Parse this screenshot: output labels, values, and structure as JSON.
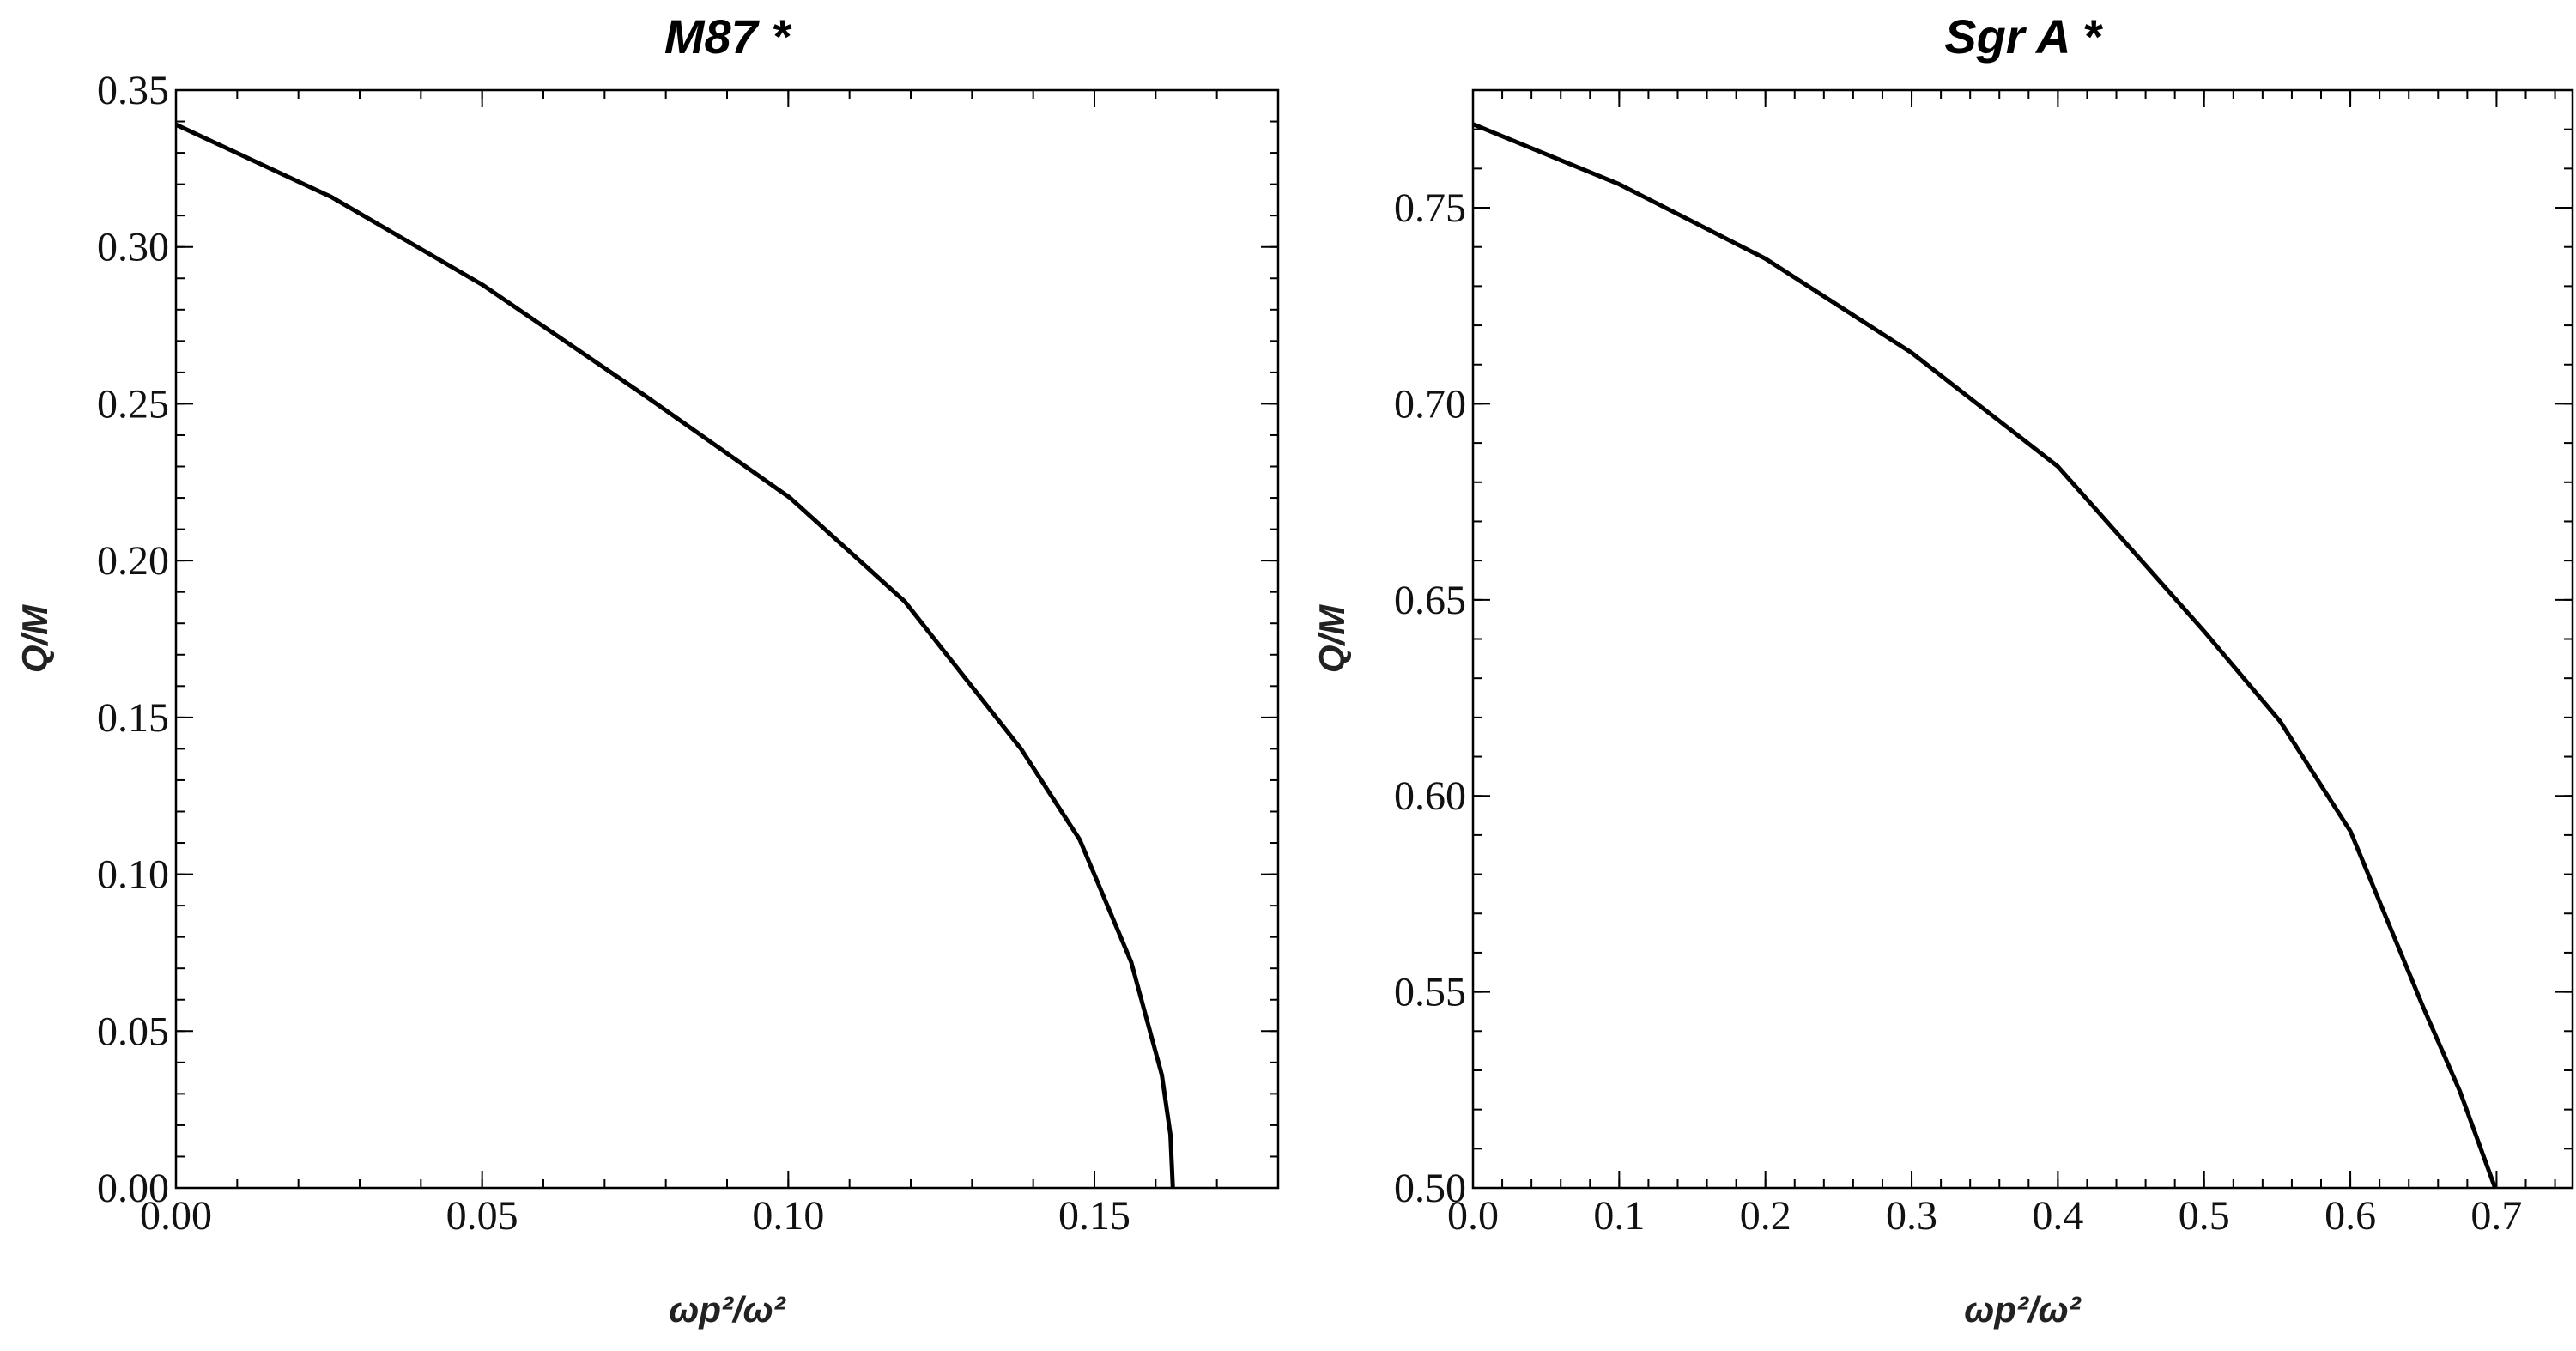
{
  "chart_data": [
    {
      "type": "line",
      "title": "M87 *",
      "xlabel": "ωp²/ω²",
      "xlabel_parts": {
        "base": "ω",
        "sub": "p",
        "sup": "2",
        "slash": "/",
        "den": "ω",
        "den_sup": "2"
      },
      "ylabel": "Q/M",
      "xlim": [
        0,
        0.18
      ],
      "ylim": [
        0,
        0.35
      ],
      "xticks": [
        0,
        0.05,
        0.1,
        0.15
      ],
      "xtick_labels": [
        "0.00",
        "0.05",
        "0.10",
        "0.15"
      ],
      "x_minor_step": 0.01,
      "yticks": [
        0,
        0.05,
        0.1,
        0.15,
        0.2,
        0.25,
        0.3,
        0.35
      ],
      "ytick_labels": [
        "0.00",
        "0.05",
        "0.10",
        "0.15",
        "0.20",
        "0.25",
        "0.30",
        "0.35"
      ],
      "y_minor_step": 0.01,
      "grid": false,
      "series": [
        {
          "name": "Q/M",
          "color": "#000000",
          "x": [
            0,
            0.0253,
            0.05,
            0.0763,
            0.1003,
            0.119,
            0.138,
            0.1476,
            0.156,
            0.161,
            0.1624,
            0.1628
          ],
          "y": [
            0.339,
            0.316,
            0.288,
            0.253,
            0.22,
            0.187,
            0.14,
            0.111,
            0.072,
            0.036,
            0.017,
            0.0
          ]
        }
      ]
    },
    {
      "type": "line",
      "title": "Sgr A *",
      "xlabel": "ωp²/ω²",
      "xlabel_parts": {
        "base": "ω",
        "sub": "p",
        "sup": "2",
        "slash": "/",
        "den": "ω",
        "den_sup": "2"
      },
      "ylabel": "Q/M",
      "xlim": [
        0,
        0.752
      ],
      "ylim": [
        0.5,
        0.78
      ],
      "xticks": [
        0,
        0.1,
        0.2,
        0.3,
        0.4,
        0.5,
        0.6,
        0.7
      ],
      "xtick_labels": [
        "0.0",
        "0.1",
        "0.2",
        "0.3",
        "0.4",
        "0.5",
        "0.6",
        "0.7"
      ],
      "x_minor_step": 0.02,
      "yticks": [
        0.5,
        0.55,
        0.6,
        0.65,
        0.7,
        0.75
      ],
      "ytick_labels": [
        "0.50",
        "0.55",
        "0.60",
        "0.65",
        "0.70",
        "0.75"
      ],
      "y_minor_step": 0.01,
      "grid": false,
      "series": [
        {
          "name": "Q/M",
          "color": "#000000",
          "x": [
            0,
            0.1,
            0.2,
            0.3,
            0.4,
            0.5,
            0.552,
            0.6,
            0.65,
            0.675,
            0.699
          ],
          "y": [
            0.7713,
            0.756,
            0.737,
            0.713,
            0.684,
            0.642,
            0.619,
            0.591,
            0.546,
            0.5246,
            0.5
          ]
        }
      ]
    }
  ]
}
